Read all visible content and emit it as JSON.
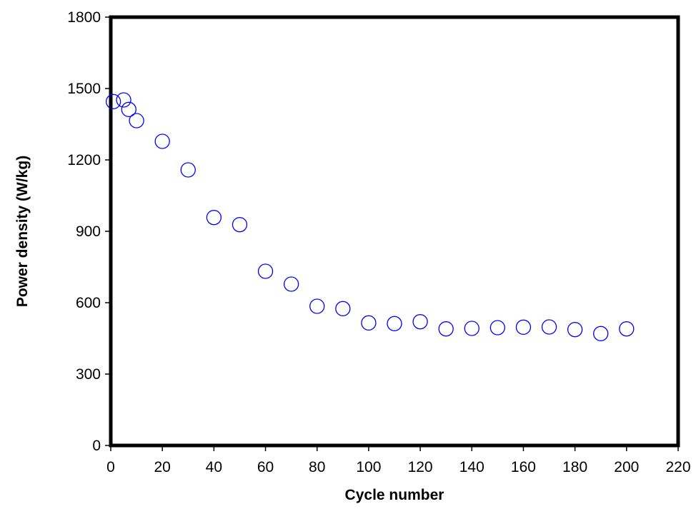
{
  "chart_data": {
    "type": "scatter",
    "title": "",
    "xlabel": "Cycle number",
    "ylabel": "Power density (W/kg)",
    "xlim": [
      0,
      220
    ],
    "ylim": [
      0,
      1800
    ],
    "xticks": [
      0,
      20,
      40,
      60,
      80,
      100,
      120,
      140,
      160,
      180,
      200,
      220
    ],
    "yticks": [
      0,
      300,
      600,
      900,
      1200,
      1500,
      1800
    ],
    "grid": false,
    "legend": "none",
    "marker": "open-circle",
    "colors": {
      "marker": "#0000ff",
      "frame": "#000000"
    },
    "series": [
      {
        "x": [
          1,
          5,
          7,
          10,
          20,
          30,
          40,
          50,
          60,
          70,
          80,
          90,
          100,
          110,
          120,
          130,
          140,
          150,
          160,
          170,
          180,
          190,
          200
        ],
        "y": [
          1445,
          1452,
          1412,
          1365,
          1278,
          1158,
          958,
          928,
          732,
          678,
          585,
          575,
          515,
          512,
          520,
          490,
          492,
          495,
          497,
          498,
          487,
          470,
          490
        ]
      }
    ]
  }
}
